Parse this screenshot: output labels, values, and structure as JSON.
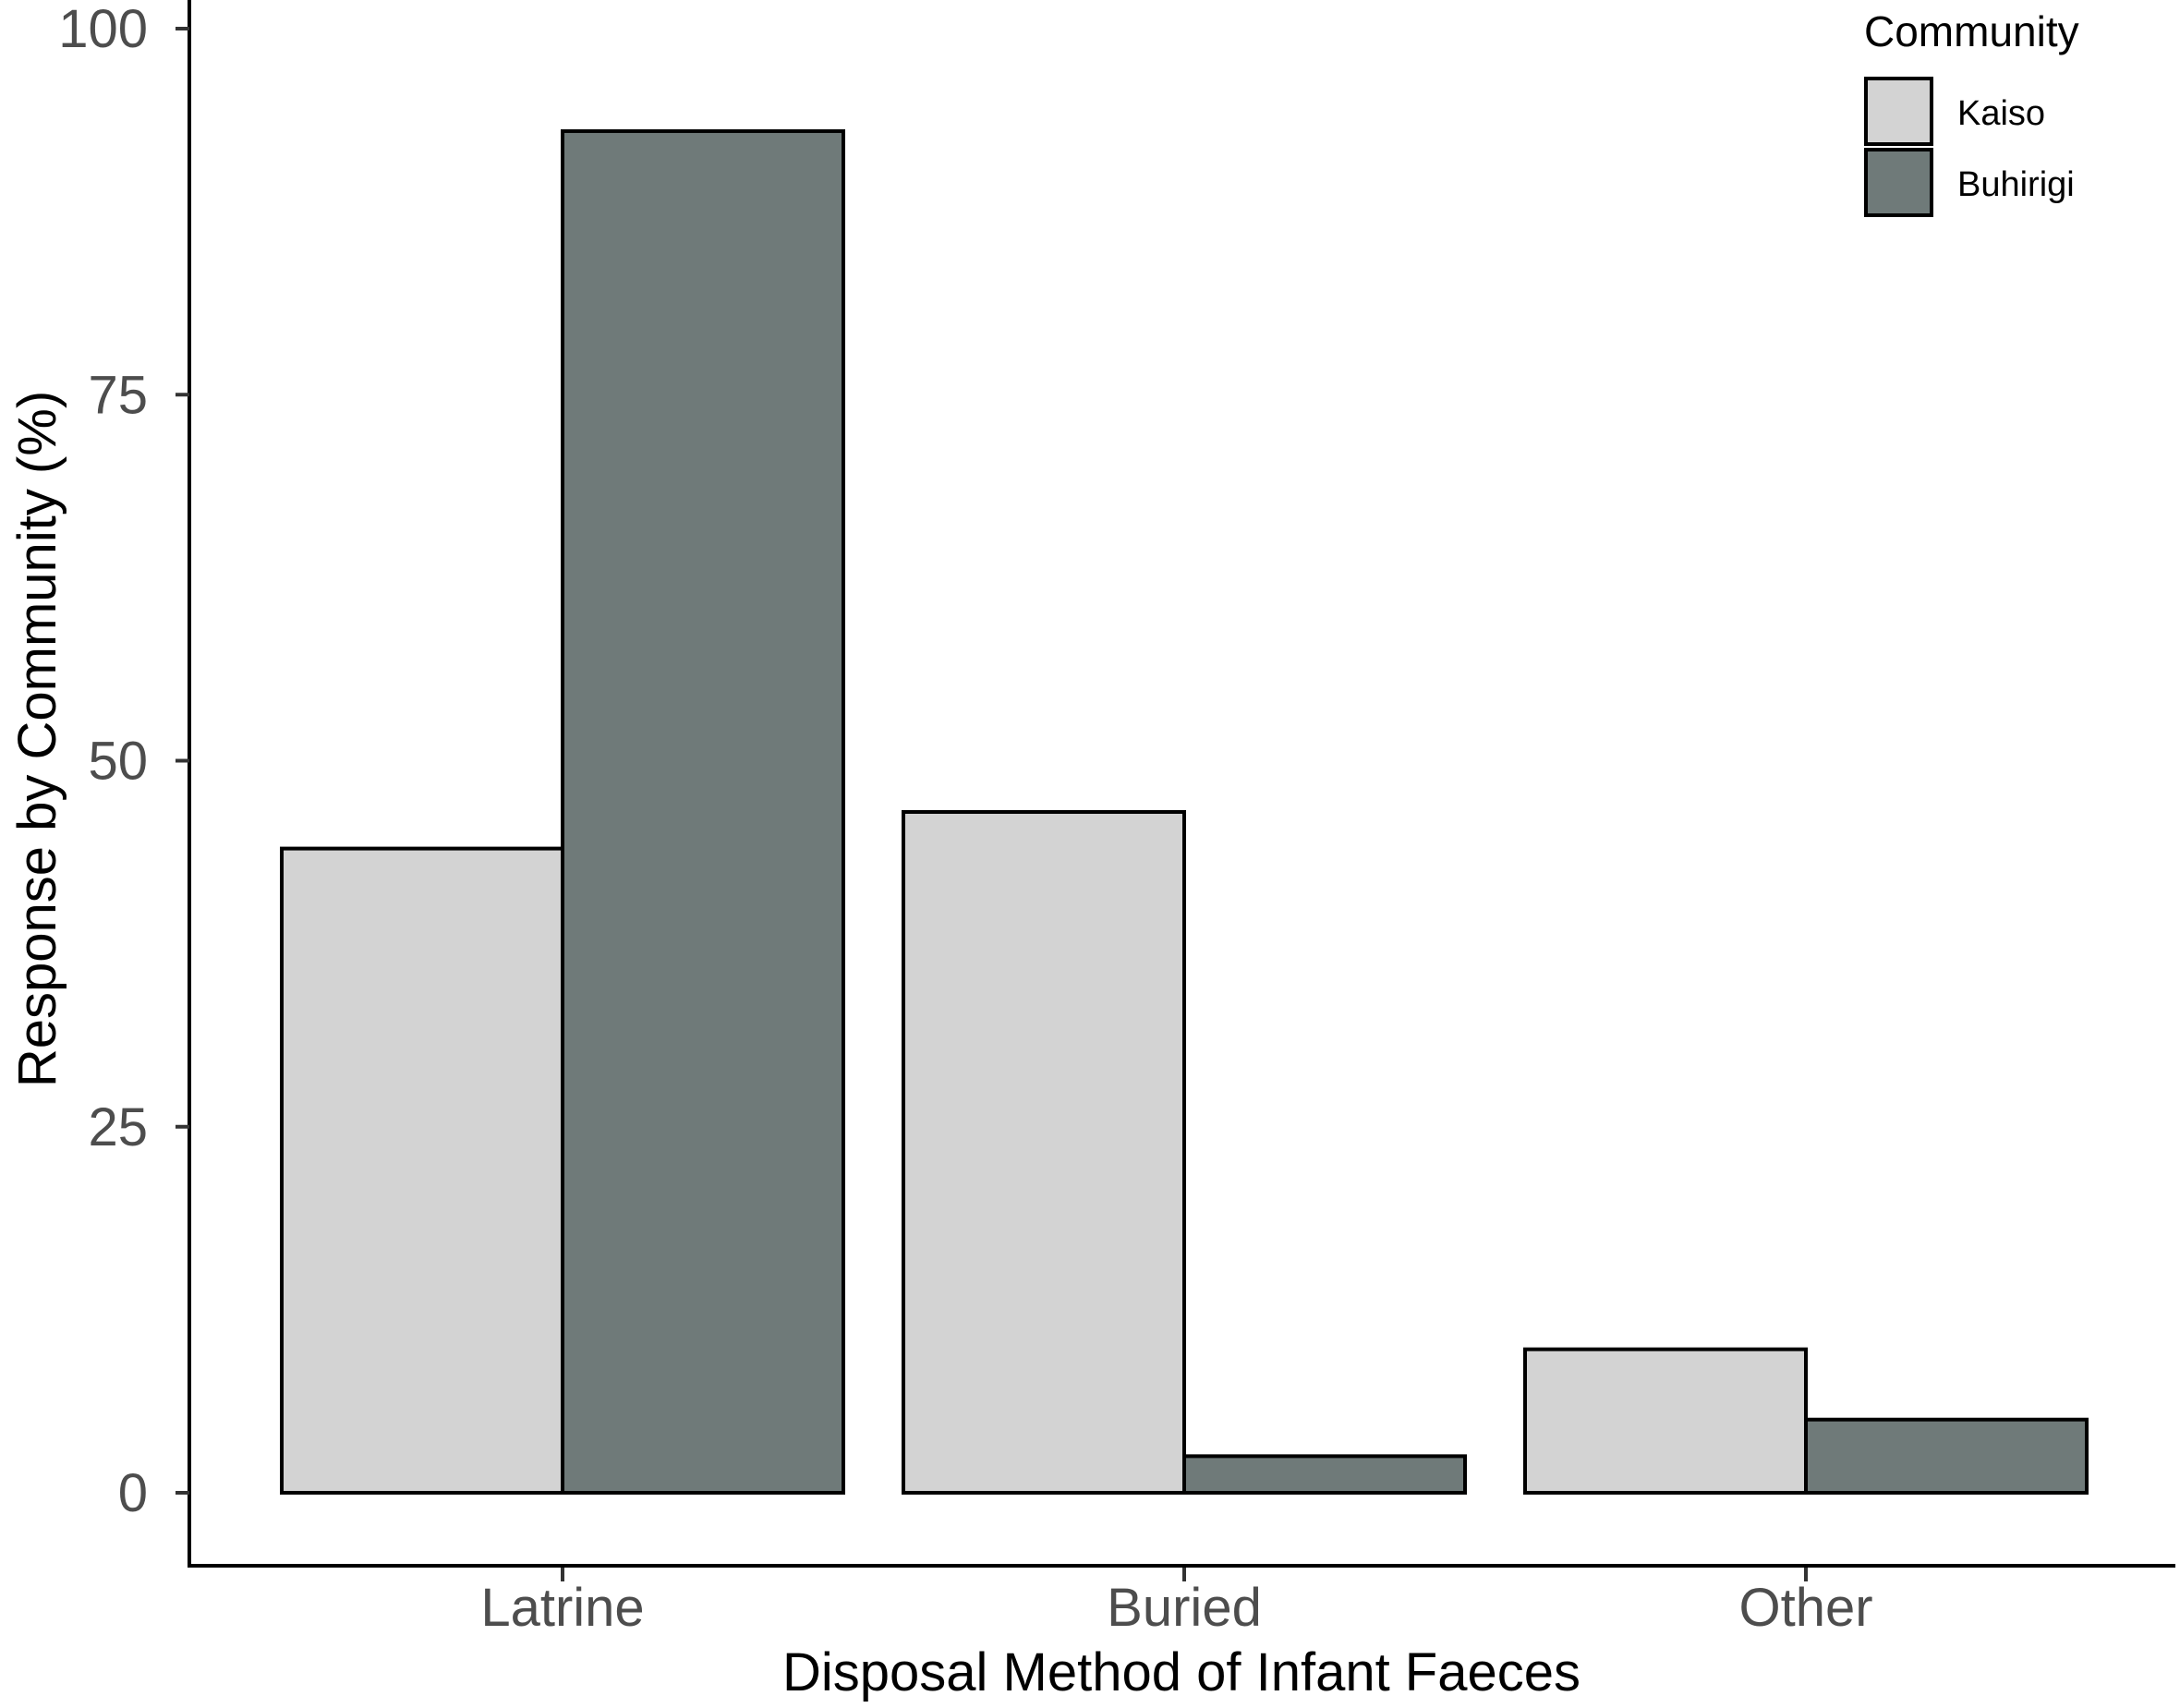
{
  "chart_data": {
    "type": "bar",
    "xlabel": "Disposal Method of Infant Faeces",
    "ylabel": "Response by Community (%)",
    "categories": [
      "Latrine",
      "Buried",
      "Other"
    ],
    "series": [
      {
        "name": "Kaiso",
        "values": [
          44,
          46.5,
          9.8
        ],
        "color": "#d3d3d3"
      },
      {
        "name": "Buhirigi",
        "values": [
          93,
          2.5,
          5
        ],
        "color": "#6f7a79"
      }
    ],
    "ylim": [
      -5,
      100
    ],
    "yticks": [
      0,
      25,
      50,
      75,
      100
    ],
    "legend": {
      "title": "Community",
      "placement": "top-right"
    },
    "grid": false
  }
}
